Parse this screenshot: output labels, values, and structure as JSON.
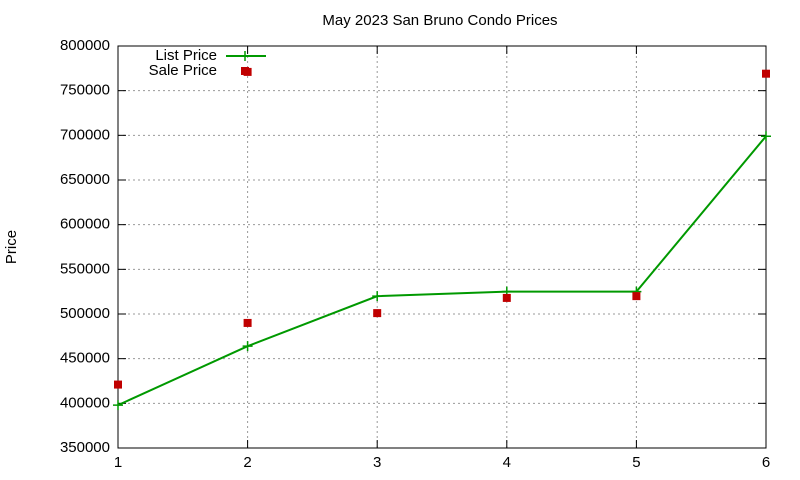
{
  "chart_data": {
    "type": "line",
    "title": "May 2023 San Bruno Condo Prices",
    "ylabel": "Price",
    "xlim": [
      1,
      6
    ],
    "xticks": [
      1,
      2,
      3,
      4,
      5,
      6
    ],
    "ylim": [
      350000,
      800000
    ],
    "yticks": [
      350000,
      400000,
      450000,
      500000,
      550000,
      600000,
      650000,
      700000,
      750000,
      800000
    ],
    "grid": true,
    "legend": "top-left",
    "series": [
      {
        "name": "List Price",
        "color": "#009900",
        "mode": "lines+markers",
        "marker": "plus",
        "x": [
          1,
          2,
          3,
          4,
          5,
          6
        ],
        "values": [
          398000,
          464000,
          520000,
          525000,
          525000,
          699000
        ]
      },
      {
        "name": "Sale Price",
        "color": "#c00000",
        "mode": "markers",
        "marker": "square",
        "x": [
          1,
          2,
          2,
          3,
          4,
          5,
          6
        ],
        "values": [
          421000,
          771000,
          490000,
          501000,
          518000,
          520000,
          769000
        ]
      }
    ]
  }
}
